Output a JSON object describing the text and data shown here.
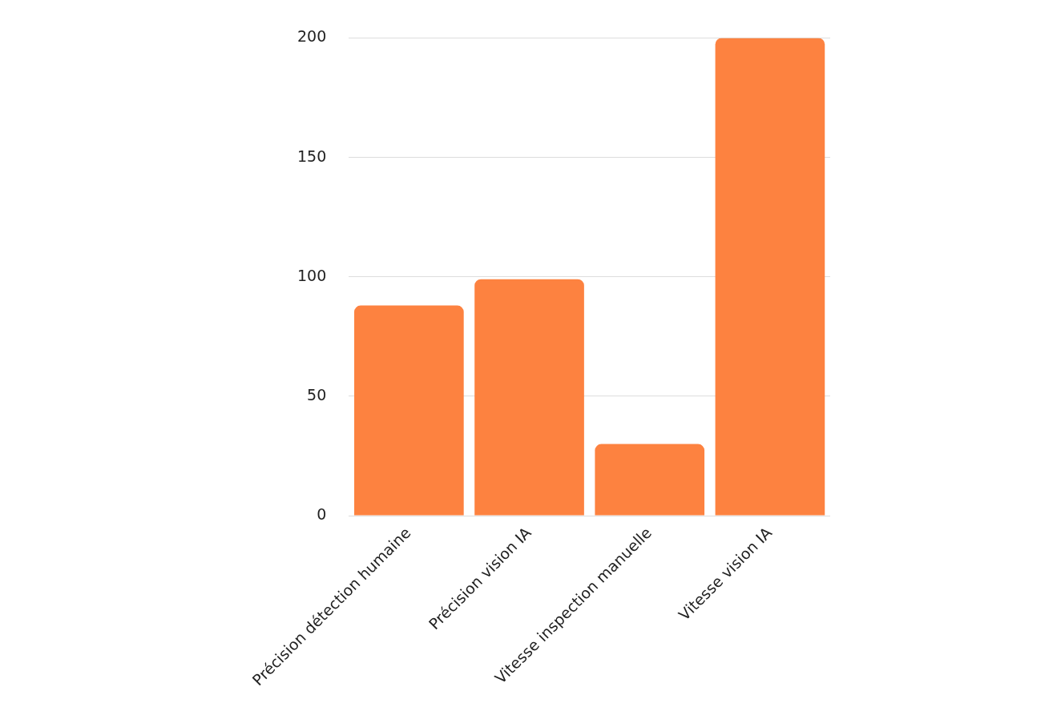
{
  "chart_data": {
    "type": "bar",
    "categories": [
      "Précision détection humaine",
      "Précision vision IA",
      "Vitesse inspection manuelle",
      "Vitesse vision IA"
    ],
    "values": [
      88,
      99,
      30,
      200
    ],
    "color": "#fd8240",
    "ylim": [
      0,
      200
    ],
    "yticks": [
      0,
      50,
      100,
      150,
      200
    ],
    "grid": "y",
    "legend": false
  }
}
